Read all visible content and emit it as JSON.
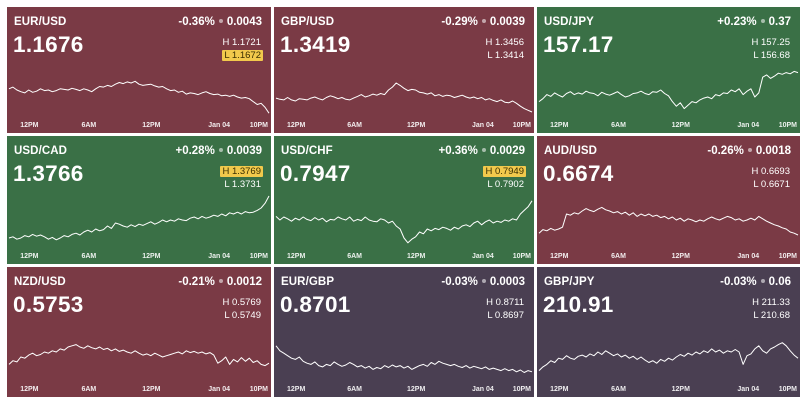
{
  "colors": {
    "down": "#7a3a45",
    "up": "#3a7046",
    "flat": "#4a3f52",
    "highlight": "#f2c94c",
    "line": "#ffffff"
  },
  "tiles": [
    {
      "pair": "EUR/USD",
      "change": "-0.36%",
      "change_abs": "0.0043",
      "price": "1.1676",
      "high": "H 1.1721",
      "low": "L 1.1672",
      "highlight": "low",
      "trend": "down",
      "x_labels": [
        "12PM",
        "6AM",
        "12PM",
        "Jan 04",
        "10PM"
      ],
      "series": [
        0.52,
        0.55,
        0.5,
        0.47,
        0.45,
        0.5,
        0.46,
        0.48,
        0.52,
        0.49,
        0.5,
        0.47,
        0.49,
        0.52,
        0.51,
        0.5,
        0.53,
        0.51,
        0.49,
        0.52,
        0.5,
        0.47,
        0.52,
        0.56,
        0.55,
        0.58,
        0.56,
        0.6,
        0.63,
        0.61,
        0.64,
        0.62,
        0.65,
        0.6,
        0.58,
        0.59,
        0.6,
        0.57,
        0.55,
        0.56,
        0.52,
        0.49,
        0.5,
        0.46,
        0.48,
        0.43,
        0.45,
        0.44,
        0.42,
        0.45,
        0.47,
        0.44,
        0.42,
        0.43,
        0.4,
        0.41,
        0.39,
        0.41,
        0.38,
        0.36,
        0.37,
        0.35,
        0.3,
        0.25,
        0.27,
        0.2,
        0.1
      ]
    },
    {
      "pair": "GBP/USD",
      "change": "-0.29%",
      "change_abs": "0.0039",
      "price": "1.3419",
      "high": "H 1.3456",
      "low": "L 1.3414",
      "highlight": "none",
      "trend": "down",
      "x_labels": [
        "12PM",
        "6AM",
        "12PM",
        "Jan 04",
        "10PM"
      ],
      "series": [
        0.36,
        0.34,
        0.33,
        0.37,
        0.33,
        0.31,
        0.35,
        0.34,
        0.33,
        0.36,
        0.38,
        0.35,
        0.33,
        0.37,
        0.4,
        0.38,
        0.35,
        0.37,
        0.34,
        0.33,
        0.36,
        0.39,
        0.42,
        0.38,
        0.4,
        0.43,
        0.41,
        0.44,
        0.42,
        0.5,
        0.55,
        0.62,
        0.58,
        0.53,
        0.49,
        0.51,
        0.5,
        0.46,
        0.45,
        0.43,
        0.45,
        0.4,
        0.42,
        0.39,
        0.41,
        0.4,
        0.37,
        0.39,
        0.41,
        0.38,
        0.36,
        0.38,
        0.35,
        0.37,
        0.33,
        0.35,
        0.32,
        0.3,
        0.33,
        0.29,
        0.28,
        0.31,
        0.27,
        0.22,
        0.18,
        0.15,
        0.12
      ]
    },
    {
      "pair": "USD/JPY",
      "change": "+0.23%",
      "change_abs": "0.37",
      "price": "157.17",
      "high": "H 157.25",
      "low": "L 156.68",
      "highlight": "none",
      "trend": "up",
      "x_labels": [
        "12PM",
        "6AM",
        "12PM",
        "Jan 04",
        "10PM"
      ],
      "series": [
        0.3,
        0.35,
        0.42,
        0.39,
        0.45,
        0.41,
        0.38,
        0.44,
        0.47,
        0.42,
        0.45,
        0.43,
        0.48,
        0.45,
        0.44,
        0.4,
        0.46,
        0.43,
        0.41,
        0.44,
        0.47,
        0.42,
        0.38,
        0.4,
        0.44,
        0.45,
        0.48,
        0.44,
        0.42,
        0.47,
        0.46,
        0.5,
        0.44,
        0.4,
        0.3,
        0.22,
        0.28,
        0.18,
        0.24,
        0.3,
        0.28,
        0.33,
        0.36,
        0.38,
        0.35,
        0.42,
        0.4,
        0.45,
        0.44,
        0.5,
        0.47,
        0.52,
        0.42,
        0.48,
        0.52,
        0.38,
        0.45,
        0.72,
        0.76,
        0.7,
        0.74,
        0.79,
        0.77,
        0.8,
        0.78,
        0.82,
        0.8
      ]
    },
    {
      "pair": "USD/CAD",
      "change": "+0.28%",
      "change_abs": "0.0039",
      "price": "1.3766",
      "high": "H 1.3769",
      "low": "L 1.3731",
      "highlight": "high",
      "trend": "up",
      "x_labels": [
        "12PM",
        "6AM",
        "12PM",
        "Jan 04",
        "10PM"
      ],
      "series": [
        0.2,
        0.22,
        0.18,
        0.2,
        0.24,
        0.22,
        0.26,
        0.23,
        0.25,
        0.22,
        0.18,
        0.21,
        0.17,
        0.2,
        0.24,
        0.22,
        0.26,
        0.28,
        0.25,
        0.3,
        0.33,
        0.3,
        0.35,
        0.32,
        0.34,
        0.4,
        0.36,
        0.45,
        0.43,
        0.4,
        0.38,
        0.42,
        0.39,
        0.43,
        0.41,
        0.44,
        0.47,
        0.43,
        0.46,
        0.5,
        0.47,
        0.5,
        0.48,
        0.52,
        0.5,
        0.49,
        0.53,
        0.55,
        0.52,
        0.56,
        0.53,
        0.55,
        0.58,
        0.56,
        0.6,
        0.57,
        0.62,
        0.6,
        0.63,
        0.6,
        0.64,
        0.62,
        0.63,
        0.66,
        0.7,
        0.78,
        0.9
      ]
    },
    {
      "pair": "USD/CHF",
      "change": "+0.36%",
      "change_abs": "0.0029",
      "price": "0.7947",
      "high": "H 0.7949",
      "low": "L 0.7902",
      "highlight": "high",
      "trend": "up",
      "x_labels": [
        "12PM",
        "6AM",
        "12PM",
        "Jan 04",
        "10PM"
      ],
      "series": [
        0.56,
        0.5,
        0.55,
        0.52,
        0.48,
        0.53,
        0.5,
        0.55,
        0.51,
        0.49,
        0.54,
        0.5,
        0.53,
        0.47,
        0.51,
        0.5,
        0.55,
        0.52,
        0.5,
        0.55,
        0.48,
        0.51,
        0.49,
        0.55,
        0.5,
        0.48,
        0.47,
        0.52,
        0.5,
        0.45,
        0.48,
        0.4,
        0.35,
        0.2,
        0.12,
        0.18,
        0.22,
        0.3,
        0.27,
        0.35,
        0.32,
        0.36,
        0.34,
        0.38,
        0.36,
        0.33,
        0.38,
        0.35,
        0.4,
        0.42,
        0.39,
        0.45,
        0.48,
        0.42,
        0.47,
        0.5,
        0.45,
        0.48,
        0.46,
        0.5,
        0.48,
        0.52,
        0.5,
        0.6,
        0.66,
        0.72,
        0.82
      ]
    },
    {
      "pair": "AUD/USD",
      "change": "-0.26%",
      "change_abs": "0.0018",
      "price": "0.6674",
      "high": "H 0.6693",
      "low": "L 0.6671",
      "highlight": "none",
      "trend": "down",
      "x_labels": [
        "12PM",
        "6AM",
        "12PM",
        "Jan 04",
        "10PM"
      ],
      "series": [
        0.28,
        0.34,
        0.32,
        0.36,
        0.33,
        0.35,
        0.38,
        0.6,
        0.58,
        0.62,
        0.6,
        0.65,
        0.69,
        0.66,
        0.64,
        0.68,
        0.71,
        0.67,
        0.65,
        0.62,
        0.64,
        0.6,
        0.63,
        0.58,
        0.62,
        0.56,
        0.6,
        0.57,
        0.6,
        0.56,
        0.58,
        0.54,
        0.56,
        0.52,
        0.55,
        0.5,
        0.53,
        0.48,
        0.52,
        0.5,
        0.47,
        0.5,
        0.48,
        0.52,
        0.55,
        0.52,
        0.5,
        0.53,
        0.56,
        0.54,
        0.5,
        0.52,
        0.48,
        0.5,
        0.53,
        0.5,
        0.56,
        0.52,
        0.48,
        0.45,
        0.42,
        0.4,
        0.37,
        0.35,
        0.3,
        0.28,
        0.25
      ]
    },
    {
      "pair": "NZD/USD",
      "change": "-0.21%",
      "change_abs": "0.0012",
      "price": "0.5753",
      "high": "H 0.5769",
      "low": "L 0.5749",
      "highlight": "none",
      "trend": "down",
      "x_labels": [
        "12PM",
        "6AM",
        "12PM",
        "Jan 04",
        "10PM"
      ],
      "series": [
        0.3,
        0.36,
        0.34,
        0.42,
        0.4,
        0.45,
        0.48,
        0.44,
        0.46,
        0.5,
        0.48,
        0.52,
        0.5,
        0.55,
        0.53,
        0.58,
        0.6,
        0.62,
        0.58,
        0.56,
        0.6,
        0.57,
        0.55,
        0.58,
        0.54,
        0.56,
        0.52,
        0.55,
        0.51,
        0.53,
        0.5,
        0.48,
        0.52,
        0.48,
        0.45,
        0.47,
        0.44,
        0.48,
        0.45,
        0.42,
        0.44,
        0.46,
        0.48,
        0.5,
        0.47,
        0.52,
        0.49,
        0.51,
        0.48,
        0.5,
        0.47,
        0.49,
        0.45,
        0.32,
        0.36,
        0.42,
        0.3,
        0.38,
        0.34,
        0.41,
        0.35,
        0.4,
        0.33,
        0.36,
        0.3,
        0.28,
        0.32
      ]
    },
    {
      "pair": "EUR/GBP",
      "change": "-0.03%",
      "change_abs": "0.0003",
      "price": "0.8701",
      "high": "H 0.8711",
      "low": "L 0.8697",
      "highlight": "none",
      "trend": "flat",
      "x_labels": [
        "12PM",
        "6AM",
        "12PM",
        "Jan 04",
        "10PM"
      ],
      "series": [
        0.6,
        0.52,
        0.48,
        0.44,
        0.4,
        0.38,
        0.42,
        0.35,
        0.32,
        0.3,
        0.34,
        0.28,
        0.26,
        0.3,
        0.28,
        0.34,
        0.3,
        0.27,
        0.29,
        0.33,
        0.3,
        0.26,
        0.28,
        0.24,
        0.27,
        0.22,
        0.25,
        0.23,
        0.28,
        0.25,
        0.29,
        0.26,
        0.28,
        0.24,
        0.27,
        0.22,
        0.25,
        0.28,
        0.3,
        0.27,
        0.33,
        0.3,
        0.35,
        0.32,
        0.3,
        0.28,
        0.3,
        0.27,
        0.25,
        0.28,
        0.24,
        0.27,
        0.25,
        0.23,
        0.26,
        0.22,
        0.24,
        0.22,
        0.2,
        0.23,
        0.2,
        0.22,
        0.18,
        0.21,
        0.17,
        0.2,
        0.18
      ]
    },
    {
      "pair": "GBP/JPY",
      "change": "-0.03%",
      "change_abs": "0.06",
      "price": "210.91",
      "high": "H 211.33",
      "low": "L 210.68",
      "highlight": "none",
      "trend": "flat",
      "x_labels": [
        "12PM",
        "6AM",
        "12PM",
        "Jan 04",
        "10PM"
      ],
      "series": [
        0.2,
        0.26,
        0.3,
        0.36,
        0.33,
        0.4,
        0.38,
        0.44,
        0.4,
        0.38,
        0.43,
        0.45,
        0.42,
        0.47,
        0.44,
        0.5,
        0.46,
        0.52,
        0.48,
        0.44,
        0.47,
        0.42,
        0.45,
        0.4,
        0.43,
        0.38,
        0.42,
        0.37,
        0.33,
        0.36,
        0.32,
        0.38,
        0.35,
        0.4,
        0.37,
        0.42,
        0.46,
        0.43,
        0.48,
        0.45,
        0.5,
        0.47,
        0.52,
        0.49,
        0.55,
        0.5,
        0.53,
        0.48,
        0.52,
        0.5,
        0.54,
        0.5,
        0.3,
        0.44,
        0.47,
        0.55,
        0.6,
        0.52,
        0.48,
        0.55,
        0.58,
        0.62,
        0.65,
        0.6,
        0.52,
        0.45,
        0.4
      ]
    }
  ]
}
